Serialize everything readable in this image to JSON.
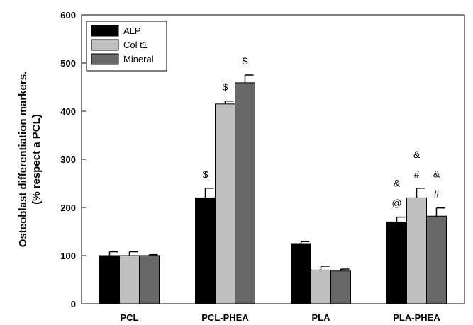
{
  "chart_data": {
    "type": "bar",
    "ylabel": [
      "Osteoblast differentiation markers.",
      "(% respect a PCL)"
    ],
    "ylim": [
      0,
      600
    ],
    "yticks": [
      0,
      100,
      200,
      300,
      400,
      500,
      600
    ],
    "categories": [
      "PCL",
      "PCL-PHEA",
      "PLA",
      "PLA-PHEA"
    ],
    "series": [
      {
        "name": "ALP",
        "color": "#000000",
        "values": [
          100,
          220,
          125,
          170
        ],
        "errors": [
          8,
          20,
          4,
          10
        ]
      },
      {
        "name": "Col t1",
        "color": "#c0c0c0",
        "values": [
          100,
          415,
          70,
          220
        ],
        "errors": [
          8,
          6,
          8,
          20
        ]
      },
      {
        "name": "Mineral",
        "color": "#686868",
        "values": [
          100,
          459,
          68,
          182
        ],
        "errors": [
          2,
          16,
          4,
          17
        ]
      }
    ],
    "annotations": [
      {
        "category": 1,
        "series": 0,
        "lines": [
          "$"
        ]
      },
      {
        "category": 1,
        "series": 1,
        "lines": [
          "$"
        ]
      },
      {
        "category": 1,
        "series": 2,
        "lines": [
          "$"
        ]
      },
      {
        "category": 3,
        "series": 0,
        "lines": [
          "&",
          "@"
        ]
      },
      {
        "category": 3,
        "series": 1,
        "lines": [
          "&",
          "#"
        ]
      },
      {
        "category": 3,
        "series": 2,
        "lines": [
          "&",
          "#"
        ]
      }
    ],
    "legend": {
      "position": "top-left",
      "frame": true
    },
    "grid": false
  }
}
